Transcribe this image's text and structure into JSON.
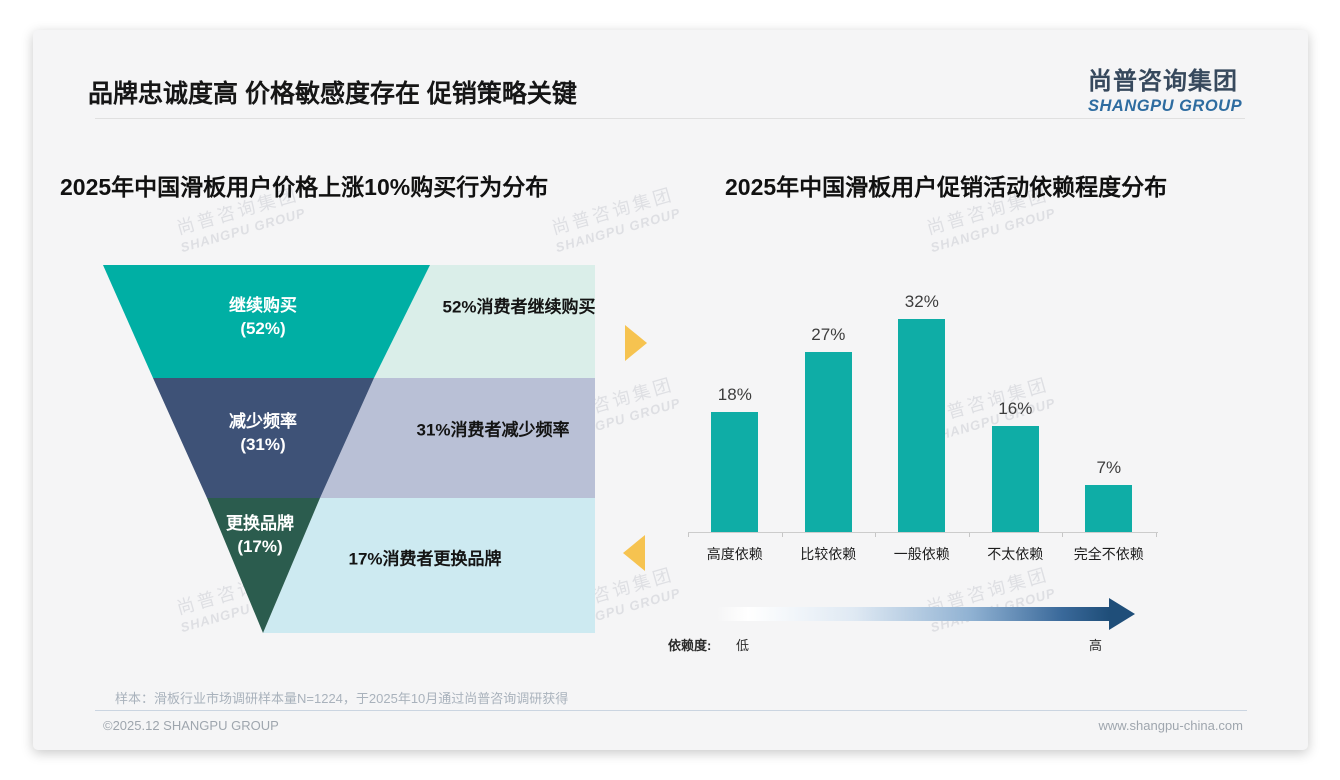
{
  "slide": {
    "title": "品牌忠诚度高 价格敏感度存在 促销策略关键",
    "logo_cn": "尚普咨询集团",
    "logo_en": "SHANGPU GROUP",
    "watermark_cn": "尚普咨询集团",
    "watermark_en": "SHANGPU GROUP",
    "footnote": "样本：滑板行业市场调研样本量N=1224，于2025年10月通过尚普咨询调研获得",
    "copyright": "©2025.12 SHANGPU GROUP",
    "website": "www.shangpu-china.com"
  },
  "colors": {
    "funnel_stage1": "#00afa4",
    "funnel_stage2": "#3e5277",
    "funnel_stage3": "#2b5c4e",
    "desc_box1": "#daeee9",
    "desc_box2": "#b9c0d6",
    "desc_box3": "#cdeaf1",
    "bar": "#0fada6",
    "accent_arrow": "#f6c350",
    "gradient_end": "#1f4e79",
    "logo_blue": "#2e6ca0"
  },
  "chart_data": [
    {
      "type": "funnel",
      "title": "2025年中国滑板用户价格上涨10%购买行为分布",
      "categories": [
        "继续购买",
        "减少频率",
        "更换品牌"
      ],
      "values": [
        52,
        31,
        17
      ],
      "stage_labels": [
        [
          "继续购买",
          "(52%)"
        ],
        [
          "减少频率",
          "(31%)"
        ],
        [
          "更换品牌",
          "(17%)"
        ]
      ],
      "annotations": [
        "52%消费者继续购买",
        "31%消费者减少频率",
        "17%消费者更换品牌"
      ]
    },
    {
      "type": "bar",
      "title": "2025年中国滑板用户促销活动依赖程度分布",
      "categories": [
        "高度依赖",
        "比较依赖",
        "一般依赖",
        "不太依赖",
        "完全不依赖"
      ],
      "values": [
        18,
        27,
        32,
        16,
        7
      ],
      "data_labels": [
        "18%",
        "27%",
        "32%",
        "16%",
        "7%"
      ],
      "ylim": [
        0,
        35
      ],
      "grid": false,
      "legend": "none",
      "xlabel": "",
      "ylabel": "",
      "axis_annotation": {
        "label": "依赖度:",
        "low": "低",
        "high": "高"
      }
    }
  ]
}
